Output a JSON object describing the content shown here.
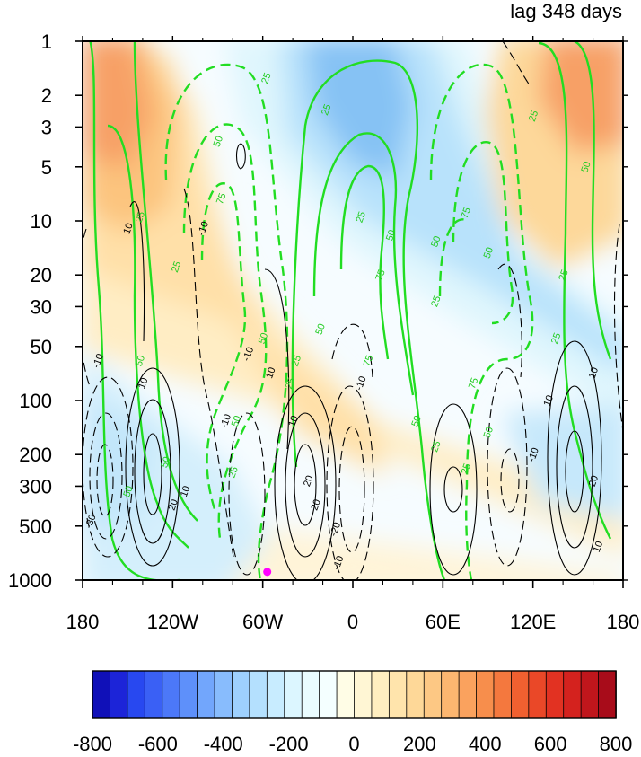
{
  "chart_data": {
    "type": "heatmap",
    "title": "lag 348 days",
    "x_ticks": [
      {
        "value": -180,
        "label": "180"
      },
      {
        "value": -120,
        "label": "120W"
      },
      {
        "value": -60,
        "label": "60W"
      },
      {
        "value": 0,
        "label": "0"
      },
      {
        "value": 60,
        "label": "60E"
      },
      {
        "value": 120,
        "label": "120E"
      },
      {
        "value": 180,
        "label": "180"
      }
    ],
    "xlim": [
      -180,
      180
    ],
    "y_scale": "log",
    "y_inverted": true,
    "y_ticks": [
      1,
      2,
      3,
      5,
      10,
      20,
      30,
      50,
      100,
      200,
      300,
      500,
      1000
    ],
    "ylim": [
      1000,
      1
    ],
    "colorbar": {
      "levels": [
        -800,
        -750,
        -700,
        -650,
        -600,
        -550,
        -500,
        -450,
        -400,
        -350,
        -300,
        -250,
        -200,
        -150,
        -100,
        -50,
        0,
        50,
        100,
        150,
        200,
        250,
        300,
        350,
        400,
        450,
        500,
        550,
        600,
        650,
        700,
        750,
        800
      ],
      "tick_labels": [
        "-800",
        "-600",
        "-400",
        "-200",
        "0",
        "200",
        "400",
        "600",
        "800"
      ],
      "tick_values": [
        -800,
        -600,
        -400,
        -200,
        0,
        200,
        400,
        600,
        800
      ],
      "colors": [
        "#1010b8",
        "#1c24d8",
        "#2848f0",
        "#3a60f5",
        "#4c78f8",
        "#5e90fa",
        "#72a6fc",
        "#88bcfd",
        "#9ed0fe",
        "#b4e0fe",
        "#c8ecff",
        "#dcf6ff",
        "#eafcff",
        "#f4ffff",
        "#fffde6",
        "#fff6d4",
        "#ffeec0",
        "#ffe4ac",
        "#fed898",
        "#fdc884",
        "#fcb670",
        "#faa25e",
        "#f78e4c",
        "#f4783e",
        "#f06030",
        "#ea4828",
        "#e23222",
        "#d4221e",
        "#c0161c",
        "#a80c1a"
      ]
    },
    "green_contour_labels": [
      {
        "lon": -58,
        "p": 1.6,
        "text": "25"
      },
      {
        "lon": -90,
        "p": 3.6,
        "text": "50"
      },
      {
        "lon": -88,
        "p": 7.5,
        "text": "75"
      },
      {
        "lon": -118,
        "p": 18,
        "text": "25"
      },
      {
        "lon": -142,
        "p": 9.5,
        "text": "25"
      },
      {
        "lon": -142,
        "p": 60,
        "text": "50"
      },
      {
        "lon": -60,
        "p": 45,
        "text": "50"
      },
      {
        "lon": -78,
        "p": 130,
        "text": "50"
      },
      {
        "lon": -42,
        "p": 80,
        "text": "25"
      },
      {
        "lon": -125,
        "p": 220,
        "text": "50"
      },
      {
        "lon": -150,
        "p": 320,
        "text": "50"
      },
      {
        "lon": -80,
        "p": 250,
        "text": "25"
      },
      {
        "lon": -18,
        "p": 2.4,
        "text": "25"
      },
      {
        "lon": 5,
        "p": 9.5,
        "text": "25"
      },
      {
        "lon": 25,
        "p": 12,
        "text": "50"
      },
      {
        "lon": 18,
        "p": 20,
        "text": "75"
      },
      {
        "lon": -22,
        "p": 40,
        "text": "50"
      },
      {
        "lon": -38,
        "p": 60,
        "text": "25"
      },
      {
        "lon": 10,
        "p": 60,
        "text": "75"
      },
      {
        "lon": 42,
        "p": 130,
        "text": "50"
      },
      {
        "lon": 55,
        "p": 13,
        "text": "50"
      },
      {
        "lon": 75,
        "p": 9,
        "text": "75"
      },
      {
        "lon": 55,
        "p": 28,
        "text": "25"
      },
      {
        "lon": 90,
        "p": 15,
        "text": "50"
      },
      {
        "lon": 80,
        "p": 80,
        "text": "75"
      },
      {
        "lon": 90,
        "p": 150,
        "text": "50"
      },
      {
        "lon": 55,
        "p": 180,
        "text": "25"
      },
      {
        "lon": 75,
        "p": 240,
        "text": "25"
      },
      {
        "lon": 120,
        "p": 2.6,
        "text": "25"
      },
      {
        "lon": 155,
        "p": 5,
        "text": "50"
      },
      {
        "lon": 140,
        "p": 20,
        "text": "25"
      },
      {
        "lon": 135,
        "p": 45,
        "text": "25"
      }
    ],
    "black_contour_labels": [
      {
        "lon": -150,
        "p": 11,
        "text": "10"
      },
      {
        "lon": -170,
        "p": 60,
        "text": "-10"
      },
      {
        "lon": -140,
        "p": 80,
        "text": "10"
      },
      {
        "lon": -100,
        "p": 11,
        "text": "-10"
      },
      {
        "lon": -85,
        "p": 130,
        "text": "-10"
      },
      {
        "lon": -70,
        "p": 55,
        "text": "-10"
      },
      {
        "lon": -40,
        "p": 130,
        "text": "10"
      },
      {
        "lon": -112,
        "p": 320,
        "text": "10"
      },
      {
        "lon": -120,
        "p": 380,
        "text": "20"
      },
      {
        "lon": -30,
        "p": 280,
        "text": "20"
      },
      {
        "lon": -25,
        "p": 380,
        "text": "20"
      },
      {
        "lon": -175,
        "p": 470,
        "text": "-30"
      },
      {
        "lon": -12,
        "p": 520,
        "text": "-20"
      },
      {
        "lon": -10,
        "p": 800,
        "text": "-10"
      },
      {
        "lon": 5,
        "p": 80,
        "text": "-10"
      },
      {
        "lon": 120,
        "p": 200,
        "text": "-10"
      },
      {
        "lon": 130,
        "p": 100,
        "text": "10"
      },
      {
        "lon": 160,
        "p": 70,
        "text": "10"
      },
      {
        "lon": 160,
        "p": 280,
        "text": "20"
      },
      {
        "lon": 163,
        "p": 650,
        "text": "10"
      },
      {
        "lon": -55,
        "p": 70,
        "text": "10"
      }
    ],
    "marker": {
      "lon": -57,
      "p": 900,
      "color": "#ff00ff"
    }
  }
}
